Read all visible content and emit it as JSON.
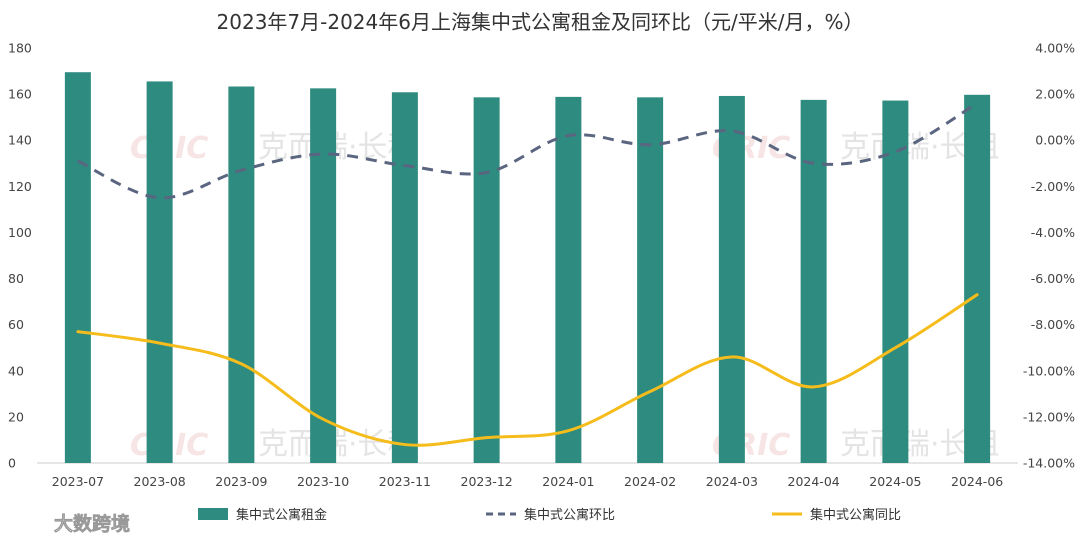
{
  "chart_data": {
    "type": "bar",
    "title": "2023年7月-2024年6月上海集中式公寓租金及同环比（元/平米/月，%）",
    "categories": [
      "2023-07",
      "2023-08",
      "2023-09",
      "2023-10",
      "2023-11",
      "2023-12",
      "2024-01",
      "2024-02",
      "2024-03",
      "2024-04",
      "2024-05",
      "2024-06"
    ],
    "y_left": {
      "min": 0,
      "max": 180,
      "step": 20,
      "ticks": [
        "0",
        "20",
        "40",
        "60",
        "80",
        "100",
        "120",
        "140",
        "160",
        "180"
      ]
    },
    "y_right": {
      "min": -14,
      "max": 4,
      "step": 2,
      "ticks": [
        "-14.00%",
        "-12.00%",
        "-10.00%",
        "-8.00%",
        "-6.00%",
        "-4.00%",
        "-2.00%",
        "0.00%",
        "2.00%",
        "4.00%"
      ]
    },
    "series": [
      {
        "name": "集中式公寓租金",
        "type": "bar",
        "axis": "left",
        "color": "#2e8b7f",
        "values": [
          169.5,
          165.5,
          163.3,
          162.5,
          160.8,
          158.6,
          158.8,
          158.6,
          159.2,
          157.5,
          157.2,
          159.7
        ]
      },
      {
        "name": "集中式公寓环比",
        "type": "line",
        "axis": "right",
        "style": "dashed",
        "color": "#5a6580",
        "values": [
          -0.9,
          -2.5,
          -1.3,
          -0.6,
          -1.1,
          -1.4,
          0.2,
          -0.2,
          0.4,
          -1.0,
          -0.5,
          1.6
        ]
      },
      {
        "name": "集中式公寓同比",
        "type": "line",
        "axis": "right",
        "style": "solid",
        "color": "#f5bc1b",
        "values": [
          -8.3,
          -8.8,
          -9.7,
          -12.1,
          -13.2,
          -12.9,
          -12.6,
          -10.9,
          -9.4,
          -10.7,
          -9.0,
          -6.7
        ]
      }
    ],
    "legend": [
      "集中式公寓租金",
      "集中式公寓环比",
      "集中式公寓同比"
    ],
    "grid": false
  },
  "watermark": {
    "logo": "CRIC",
    "text": "克而瑞·长租"
  },
  "brand": {
    "text": "大数跨境"
  }
}
